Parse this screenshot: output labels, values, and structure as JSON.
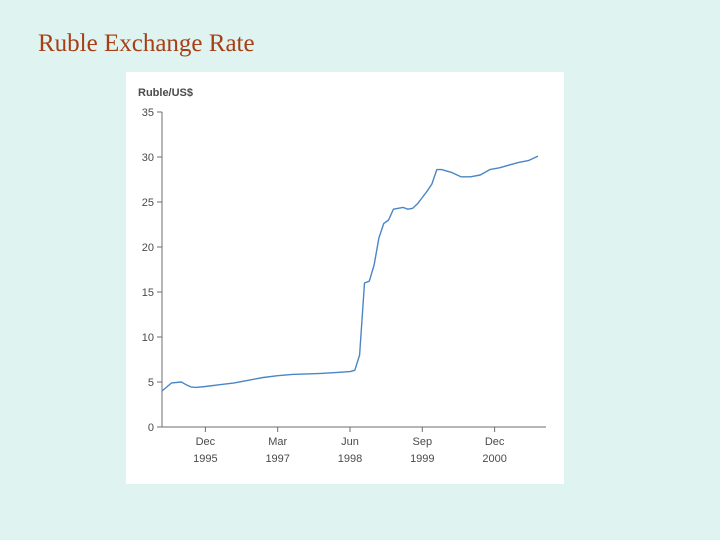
{
  "slide": {
    "title": "Ruble Exchange Rate"
  },
  "chart_data": {
    "type": "line",
    "title": "",
    "xlabel": "",
    "ylabel": "Ruble/US$",
    "ylim": [
      0,
      35
    ],
    "xlim": [
      "1995-03",
      "2001-09"
    ],
    "y_ticks": [
      0,
      5,
      10,
      15,
      20,
      25,
      30,
      35
    ],
    "x_ticks": [
      {
        "month": "Dec",
        "year": "1995",
        "date": "1995-12"
      },
      {
        "month": "Mar",
        "year": "1997",
        "date": "1997-03"
      },
      {
        "month": "Jun",
        "year": "1998",
        "date": "1998-06"
      },
      {
        "month": "Sep",
        "year": "1999",
        "date": "1999-09"
      },
      {
        "month": "Dec",
        "year": "2000",
        "date": "2000-12"
      }
    ],
    "grid": false,
    "legend": "none",
    "line_color": "#4a86c5",
    "series": [
      {
        "x": [
          "1995-03",
          "1995-05",
          "1995-07",
          "1995-08",
          "1995-09",
          "1995-10",
          "1995-12",
          "1996-03",
          "1996-06",
          "1996-09",
          "1996-12",
          "1997-03",
          "1997-06",
          "1997-09",
          "1997-12",
          "1998-03",
          "1998-06",
          "1998-07",
          "1998-08",
          "1998-09",
          "1998-10",
          "1998-11",
          "1998-12",
          "1999-01",
          "1999-02",
          "1999-03",
          "1999-04",
          "1999-05",
          "1999-06",
          "1999-07",
          "1999-08",
          "1999-09",
          "1999-10",
          "1999-11",
          "1999-12",
          "2000-01",
          "2000-03",
          "2000-05",
          "2000-07",
          "2000-09",
          "2000-11",
          "2001-01",
          "2001-03",
          "2001-05",
          "2001-07",
          "2001-09"
        ],
        "y": [
          4.0,
          4.9,
          5.0,
          4.7,
          4.45,
          4.4,
          4.5,
          4.7,
          4.9,
          5.2,
          5.5,
          5.7,
          5.85,
          5.9,
          5.95,
          6.05,
          6.15,
          6.3,
          8.0,
          16.0,
          16.2,
          18.0,
          21.0,
          22.6,
          23.0,
          24.2,
          24.3,
          24.4,
          24.2,
          24.3,
          24.8,
          25.5,
          26.2,
          27.0,
          28.6,
          28.6,
          28.3,
          27.8,
          27.8,
          28.0,
          28.6,
          28.8,
          29.1,
          29.4,
          29.6,
          30.1
        ]
      }
    ]
  }
}
